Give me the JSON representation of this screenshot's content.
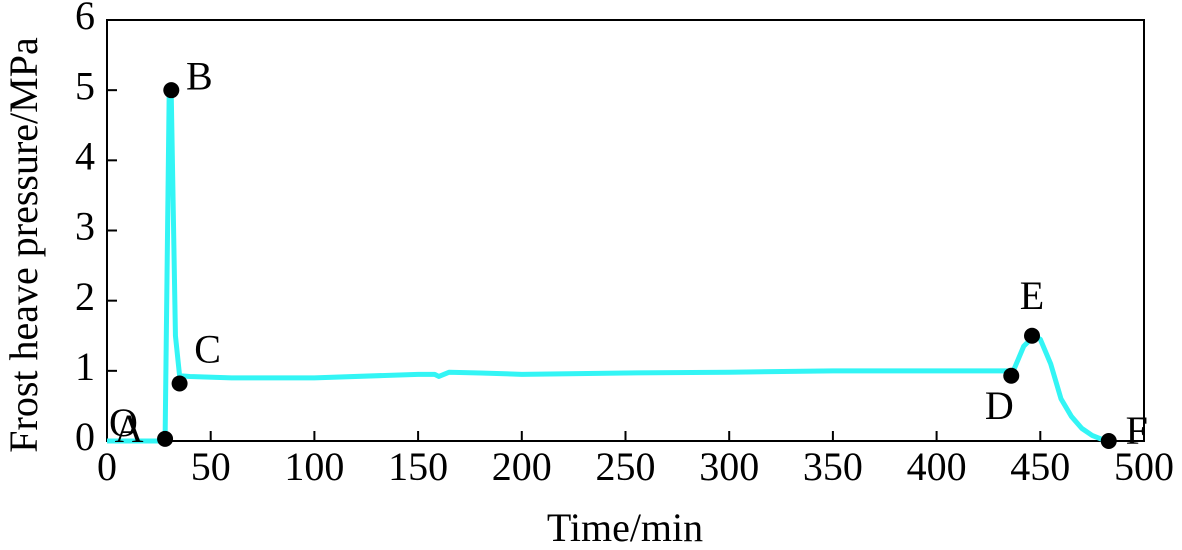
{
  "chart_data": {
    "type": "line",
    "x_label": "Time/min",
    "y_label": "Frost heave pressure/MPa",
    "xlim": [
      0,
      500
    ],
    "xticks": [
      0,
      50,
      100,
      150,
      200,
      250,
      300,
      350,
      400,
      450,
      500
    ],
    "ylim": [
      0,
      6
    ],
    "yticks": [
      0,
      1,
      2,
      3,
      4,
      5,
      6
    ],
    "series": [
      {
        "color": "#33f5f5",
        "x": [
          0,
          28,
          30,
          31,
          33,
          35,
          40,
          60,
          100,
          150,
          158,
          160,
          165,
          180,
          200,
          250,
          300,
          350,
          400,
          437,
          442,
          447,
          450,
          455,
          460,
          465,
          470,
          475,
          480,
          483
        ],
        "values": [
          0,
          0,
          5.0,
          4.9,
          1.5,
          0.93,
          0.92,
          0.9,
          0.9,
          0.95,
          0.95,
          0.92,
          0.98,
          0.97,
          0.95,
          0.97,
          0.98,
          1.0,
          1.0,
          1.0,
          1.35,
          1.5,
          1.45,
          1.1,
          0.6,
          0.35,
          0.18,
          0.08,
          0.02,
          0
        ]
      }
    ],
    "origin_label": "O",
    "points": [
      {
        "label": "A",
        "x": 28,
        "y": 0.03
      },
      {
        "label": "B",
        "x": 31,
        "y": 5.0
      },
      {
        "label": "C",
        "x": 35,
        "y": 0.82
      },
      {
        "label": "D",
        "x": 436,
        "y": 0.93
      },
      {
        "label": "E",
        "x": 446,
        "y": 1.5
      },
      {
        "label": "F",
        "x": 483,
        "y": 0
      }
    ]
  }
}
